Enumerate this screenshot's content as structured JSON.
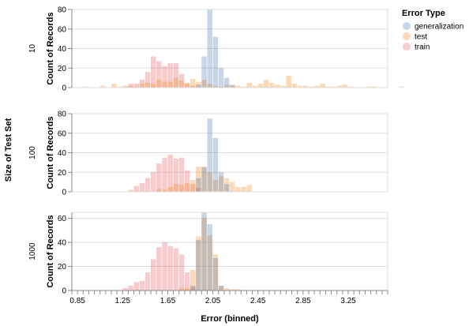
{
  "chart_data": {
    "type": "histogram",
    "row_title": "Size of Test Set",
    "x_title": "Error (binned)",
    "y_title": "Count of Records",
    "x_domain": [
      0.8,
      3.6
    ],
    "bin_start": 0.8,
    "bin_step": 0.05,
    "x_ticks": [
      "0.85",
      "1.25",
      "1.65",
      "2.05",
      "2.45",
      "2.85",
      "3.25"
    ],
    "legend": {
      "title": "Error Type",
      "items": [
        {
          "label": "generalization",
          "color": "#4c78a8"
        },
        {
          "label": "test",
          "color": "#f58518"
        },
        {
          "label": "train",
          "color": "#e45756"
        }
      ]
    },
    "facets": [
      {
        "label": "10",
        "y_max": 80,
        "y_ticks": [
          "0",
          "20",
          "40",
          "60",
          "80"
        ],
        "series": {
          "generalization": {
            "start": 1.9,
            "counts": [
              3,
              32,
              80,
              52,
              20,
              10,
              3
            ]
          },
          "test": {
            "start": 0.85,
            "counts": [
              0,
              1,
              0,
              0,
              2,
              0,
              4,
              1,
              0,
              2,
              1,
              4,
              5,
              4,
              8,
              6,
              6,
              10,
              7,
              5,
              9,
              6,
              8,
              4,
              2,
              1,
              3,
              2,
              2,
              1,
              5,
              2,
              4,
              8,
              5,
              3,
              2,
              12,
              4,
              2,
              2,
              1,
              2,
              4,
              1,
              1,
              2,
              3,
              1,
              0,
              0,
              1,
              1,
              0,
              0,
              0,
              0,
              1
            ]
          },
          "train": {
            "start": 1.25,
            "counts": [
              2,
              4,
              4,
              8,
              16,
              32,
              27,
              22,
              25,
              25,
              14,
              4,
              2
            ]
          }
        }
      },
      {
        "label": "100",
        "y_max": 80,
        "y_ticks": [
          "0",
          "20",
          "40",
          "60",
          "80"
        ],
        "series": {
          "generalization": {
            "start": 1.9,
            "counts": [
              14,
              25,
              75,
              55,
              20,
              8
            ]
          },
          "test": {
            "start": 1.55,
            "counts": [
              3,
              2,
              5,
              8,
              7,
              9,
              12,
              26,
              26,
              20,
              12,
              16,
              14,
              10,
              5,
              5,
              7
            ]
          },
          "train": {
            "start": 1.3,
            "counts": [
              2,
              6,
              9,
              14,
              20,
              29,
              35,
              38,
              34,
              35,
              22,
              8,
              4
            ]
          }
        }
      },
      {
        "label": "1000",
        "y_max": 65,
        "y_ticks": [
          "0",
          "20",
          "40",
          "60"
        ],
        "series": {
          "generalization": {
            "start": 1.85,
            "counts": [
              3,
              42,
              65,
              55,
              27,
              4
            ]
          },
          "test": {
            "start": 1.75,
            "counts": [
              2,
              2,
              17,
              45,
              60,
              46,
              30,
              4,
              2,
              1,
              1
            ]
          },
          "train": {
            "start": 1.25,
            "counts": [
              2,
              4,
              7,
              8,
              15,
              26,
              36,
              40,
              37,
              35,
              30,
              15,
              4
            ]
          }
        }
      }
    ]
  }
}
